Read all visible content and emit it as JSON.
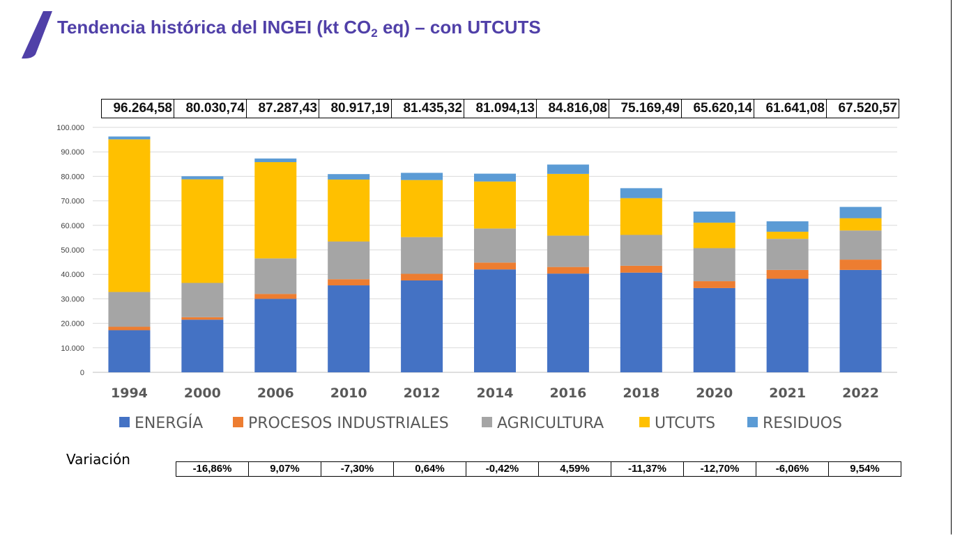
{
  "header": {
    "title_main": "Tendencia histórica del INGEI   (kt CO",
    "title_sub": "2",
    "title_end": " eq) – con UTCUTS"
  },
  "colors": {
    "title": "#5040a8",
    "logo": "#5040a8"
  },
  "chart_data": {
    "type": "bar",
    "stacked": true,
    "categories": [
      "1994",
      "2000",
      "2006",
      "2010",
      "2012",
      "2014",
      "2016",
      "2018",
      "2020",
      "2021",
      "2022"
    ],
    "ylim": [
      0,
      100000
    ],
    "yticks": [
      0,
      10000,
      20000,
      30000,
      40000,
      50000,
      60000,
      70000,
      80000,
      90000,
      100000
    ],
    "ytick_labels": [
      "0",
      "10.000",
      "20.000",
      "30.000",
      "40.000",
      "50.000",
      "60.000",
      "70.000",
      "80.000",
      "90.000",
      "100.000"
    ],
    "grid": true,
    "legend_position": "bottom",
    "series": [
      {
        "name": "ENERGÍA",
        "color": "#4472c4",
        "values": [
          17200,
          21500,
          30000,
          35500,
          37500,
          42000,
          40300,
          40700,
          34400,
          38200,
          41800
        ]
      },
      {
        "name": "PROCESOS INDUSTRIALES",
        "color": "#ed7d31",
        "values": [
          1400,
          1000,
          2000,
          2500,
          2700,
          2800,
          2700,
          2800,
          2800,
          3600,
          4200
        ]
      },
      {
        "name": "AGRICULTURA",
        "color": "#a5a5a5",
        "values": [
          14200,
          14000,
          14500,
          15400,
          15000,
          13900,
          12800,
          12600,
          13500,
          12700,
          11900
        ]
      },
      {
        "name": "UTCUTS",
        "color": "#ffc000",
        "values": [
          62300,
          42300,
          39300,
          25300,
          23300,
          19200,
          25200,
          15000,
          10400,
          2900,
          5000
        ]
      },
      {
        "name": "RESIDUOS",
        "color": "#5b9bd5",
        "values": [
          1164.58,
          1230.74,
          1487.43,
          2217.19,
          2935.32,
          3194.13,
          3816.08,
          4069.49,
          4520.14,
          4241.08,
          4620.57
        ]
      }
    ],
    "totals": [
      "96.264,58",
      "80.030,74",
      "87.287,43",
      "80.917,19",
      "81.435,32",
      "81.094,13",
      "84.816,08",
      "75.169,49",
      "65.620,14",
      "61.641,08",
      "67.520,57"
    ]
  },
  "variation": {
    "label": "Variación",
    "values": [
      "-16,86%",
      "9,07%",
      "-7,30%",
      "0,64%",
      "-0,42%",
      "4,59%",
      "-11,37%",
      "-12,70%",
      "-6,06%",
      "9,54%"
    ]
  }
}
